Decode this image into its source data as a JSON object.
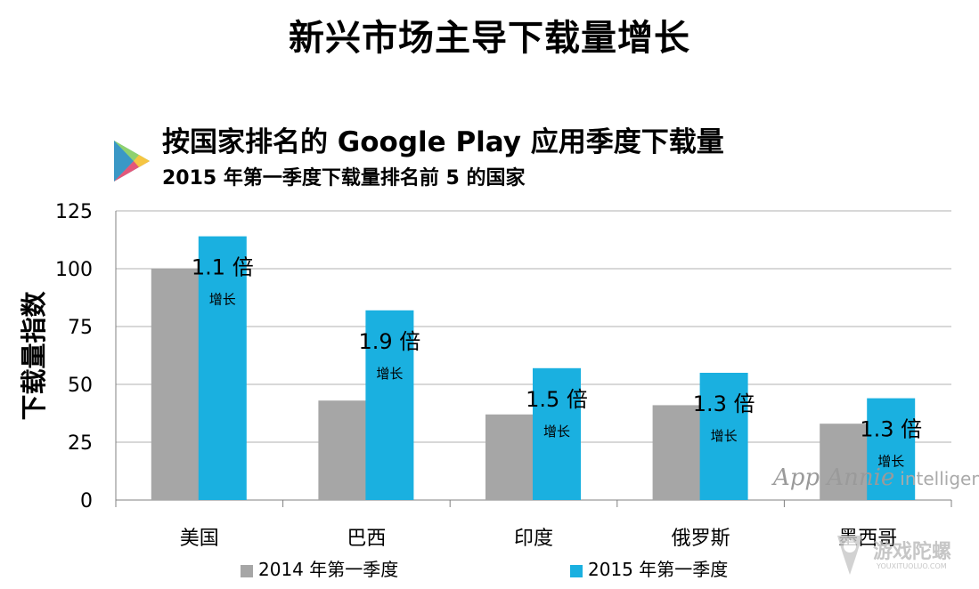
{
  "page_title": "新兴市场主导下载量增长",
  "chart_data": {
    "type": "bar",
    "title": "按国家排名的 Google Play 应用季度下载量",
    "subtitle": "2015 年第一季度下载量排名前 5 的国家",
    "xlabel": "",
    "ylabel": "下载量指数",
    "ylim": [
      0,
      125
    ],
    "yticks": [
      0,
      25,
      50,
      75,
      100,
      125
    ],
    "grid": true,
    "legend_position": "bottom",
    "categories": [
      "美国",
      "巴西",
      "印度",
      "俄罗斯",
      "墨西哥"
    ],
    "series": [
      {
        "name": "2014 年第一季度",
        "color": "#a6a6a6",
        "values": [
          100,
          43,
          37,
          41,
          33
        ]
      },
      {
        "name": "2015 年第一季度",
        "color": "#1ab0e0",
        "values": [
          114,
          82,
          57,
          55,
          44
        ]
      }
    ],
    "annotations": [
      {
        "multiplier": "1.1 倍",
        "growth": "增长"
      },
      {
        "multiplier": "1.9 倍",
        "growth": "增长"
      },
      {
        "multiplier": "1.5 倍",
        "growth": "增长"
      },
      {
        "multiplier": "1.3 倍",
        "growth": "增长"
      },
      {
        "multiplier": "1.3 倍",
        "growth": "增长"
      }
    ]
  },
  "watermarks": {
    "app_annie": "App Annie",
    "intelligence": "intelligence",
    "site_cn": "游戏陀螺",
    "site_en": "YOUXITUOLUO.COM"
  },
  "icons": {
    "logo": "google-play-icon"
  }
}
